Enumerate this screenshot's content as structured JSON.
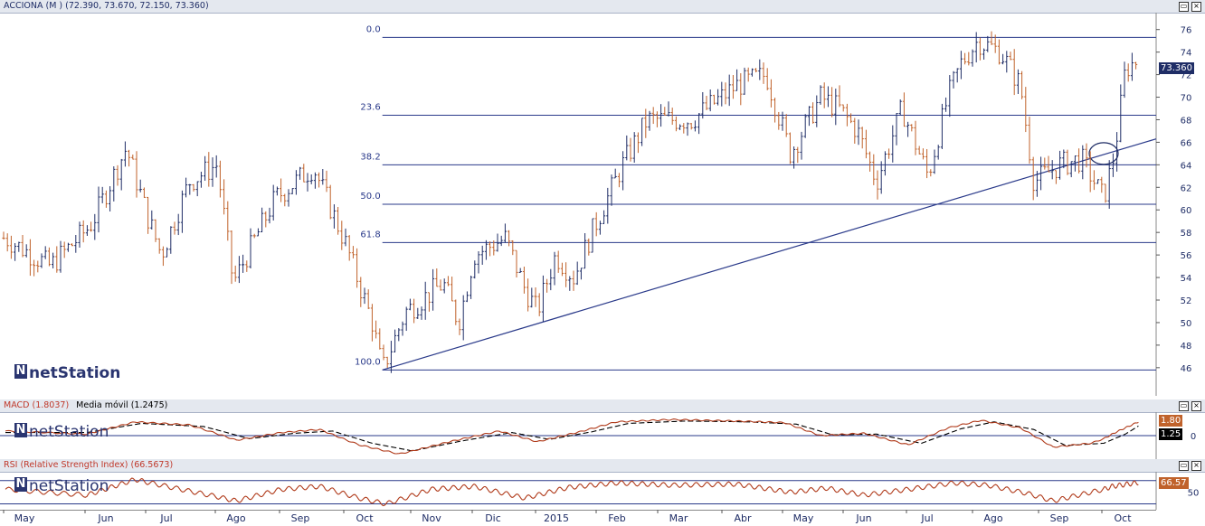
{
  "price_panel": {
    "title": "ACCIONA (M ) (72.390, 73.670, 72.150, 73.360)",
    "last_price": "73.360",
    "watermark": "netStation"
  },
  "macd_panel": {
    "title": "MACD (1.8037)",
    "title_extra": "Media móvil (1.2475)",
    "macd_value": "1.80",
    "signal_value": "1.25",
    "zero_label": "0",
    "watermark": "netStation"
  },
  "rsi_panel": {
    "title": "RSI (Relative Strength Index) (66.5673)",
    "value": "66.57",
    "level_label": "50",
    "watermark": "netStation"
  },
  "window_buttons": {
    "restore": "▭",
    "close": "×"
  },
  "colors": {
    "up": "#1f2d66",
    "down": "#c0622b",
    "accent": "#2a3a8a",
    "macd": "#b03a1a",
    "signal": "#000000",
    "rsi": "#b03a1a",
    "last_price_bg": "#1f2d66",
    "rsi_tag_bg": "#c0622b"
  },
  "chart_data": [
    {
      "type": "ohlc",
      "title": "ACCIONA (M ) (72.390, 73.670, 72.150, 73.360)",
      "x_labels": [
        "May",
        "Jun",
        "Jul",
        "Ago",
        "Sep",
        "Oct",
        "Nov",
        "Dic",
        "2015",
        "Feb",
        "Mar",
        "Abr",
        "May",
        "Jun",
        "Jul",
        "Ago",
        "Sep",
        "Oct"
      ],
      "y_ticks": [
        46,
        48,
        50,
        52,
        54,
        56,
        58,
        60,
        62,
        64,
        66,
        68,
        70,
        72,
        74,
        76
      ],
      "ylim": [
        43.5,
        77.5
      ],
      "grid": false,
      "price_path": [
        [
          0,
          57.5
        ],
        [
          0.55,
          55
        ],
        [
          1.1,
          59
        ],
        [
          1.65,
          65.5
        ],
        [
          2.2,
          56
        ],
        [
          2.6,
          62.5
        ],
        [
          3.0,
          64
        ],
        [
          3.25,
          53.5
        ],
        [
          3.9,
          61
        ],
        [
          4.5,
          63.8
        ],
        [
          5.0,
          57
        ],
        [
          5.4,
          50
        ],
        [
          5.55,
          45.8
        ],
        [
          5.9,
          51
        ],
        [
          6.5,
          53.5
        ],
        [
          6.75,
          50
        ],
        [
          7.0,
          56
        ],
        [
          7.5,
          57.5
        ],
        [
          7.8,
          53
        ],
        [
          8.0,
          51
        ],
        [
          8.3,
          56
        ],
        [
          8.6,
          54
        ],
        [
          8.9,
          58
        ],
        [
          9.4,
          64
        ],
        [
          9.8,
          68
        ],
        [
          10.5,
          68
        ],
        [
          11.2,
          71
        ],
        [
          11.7,
          72
        ],
        [
          12.1,
          65
        ],
        [
          12.6,
          70
        ],
        [
          12.9,
          69
        ],
        [
          13.2,
          67
        ],
        [
          13.5,
          62.5
        ],
        [
          13.9,
          69
        ],
        [
          14.3,
          63
        ],
        [
          14.6,
          70
        ],
        [
          14.8,
          73
        ],
        [
          15.05,
          75
        ],
        [
          15.4,
          74
        ],
        [
          15.7,
          71
        ],
        [
          15.9,
          62.5
        ],
        [
          16.3,
          64
        ],
        [
          16.65,
          64.5
        ],
        [
          17.0,
          61
        ],
        [
          17.25,
          65
        ],
        [
          17.5,
          72.5
        ],
        [
          17.8,
          73.36
        ]
      ],
      "fibonacci": {
        "range": [
          45.8,
          75.3
        ],
        "levels": [
          {
            "label": "0.0",
            "value": 75.3
          },
          {
            "label": "23.6",
            "value": 68.4
          },
          {
            "label": "38.2",
            "value": 64.0
          },
          {
            "label": "50.0",
            "value": 60.5
          },
          {
            "label": "61.8",
            "value": 57.1
          },
          {
            "label": "100.0",
            "value": 45.8
          }
        ]
      },
      "trendline": {
        "from": [
          "Oct",
          45.8
        ],
        "to": [
          "Oct",
          66.3
        ]
      },
      "annotation": "circle near Oct, price ≈ 65"
    },
    {
      "type": "line",
      "title": "MACD (1.8037)",
      "series": [
        {
          "name": "MACD (1.8037)",
          "last": 1.8037
        },
        {
          "name": "Media móvil (1.2475)",
          "last": 1.2475
        }
      ],
      "y_ticks": [
        0
      ],
      "x_labels": [
        "May",
        "Jun",
        "Jul",
        "Ago",
        "Sep",
        "Oct",
        "Nov",
        "Dic",
        "2015",
        "Feb",
        "Mar",
        "Abr",
        "May",
        "Jun",
        "Jul",
        "Ago",
        "Sep",
        "Oct"
      ],
      "macd_path": [
        [
          0,
          0.6
        ],
        [
          1,
          0.2
        ],
        [
          1.8,
          1.8
        ],
        [
          2.6,
          1.4
        ],
        [
          3.3,
          -0.6
        ],
        [
          4.0,
          0.4
        ],
        [
          4.6,
          0.8
        ],
        [
          5.2,
          -1.2
        ],
        [
          5.8,
          -2.4
        ],
        [
          6.6,
          -0.8
        ],
        [
          7.4,
          0.6
        ],
        [
          8.0,
          -0.8
        ],
        [
          8.7,
          0.5
        ],
        [
          9.3,
          1.8
        ],
        [
          10.2,
          2.1
        ],
        [
          11.2,
          1.9
        ],
        [
          12.0,
          1.7
        ],
        [
          12.6,
          0.0
        ],
        [
          13.3,
          0.3
        ],
        [
          14.0,
          -1.2
        ],
        [
          14.6,
          1.0
        ],
        [
          15.1,
          2.0
        ],
        [
          15.7,
          1.0
        ],
        [
          16.2,
          -1.5
        ],
        [
          16.8,
          -1.0
        ],
        [
          17.3,
          0.5
        ],
        [
          17.8,
          1.8
        ]
      ],
      "signal_path": [
        [
          0,
          0.4
        ],
        [
          1,
          0.4
        ],
        [
          1.9,
          1.6
        ],
        [
          2.8,
          1.2
        ],
        [
          3.5,
          -0.4
        ],
        [
          4.2,
          0.3
        ],
        [
          4.8,
          0.6
        ],
        [
          5.4,
          -1.0
        ],
        [
          6.0,
          -2.0
        ],
        [
          6.8,
          -0.7
        ],
        [
          7.6,
          0.4
        ],
        [
          8.2,
          -0.5
        ],
        [
          8.9,
          0.5
        ],
        [
          9.5,
          1.6
        ],
        [
          10.4,
          1.9
        ],
        [
          11.4,
          1.8
        ],
        [
          12.2,
          1.5
        ],
        [
          12.8,
          0.1
        ],
        [
          13.5,
          0.2
        ],
        [
          14.2,
          -1.0
        ],
        [
          14.8,
          0.9
        ],
        [
          15.3,
          1.8
        ],
        [
          15.9,
          0.8
        ],
        [
          16.4,
          -1.3
        ],
        [
          17.0,
          -1.0
        ],
        [
          17.5,
          0.2
        ],
        [
          17.8,
          1.25
        ]
      ]
    },
    {
      "type": "line",
      "title": "RSI (Relative Strength Index) (66.5673)",
      "series": [
        {
          "name": "RSI (Relative Strength Index) (66.5673)",
          "last": 66.5673
        }
      ],
      "y_ticks": [
        50
      ],
      "ylim": [
        20,
        85
      ],
      "x_labels": [
        "May",
        "Jun",
        "Jul",
        "Ago",
        "Sep",
        "Oct",
        "Nov",
        "Dic",
        "2015",
        "Feb",
        "Mar",
        "Abr",
        "May",
        "Jun",
        "Jul",
        "Ago",
        "Sep",
        "Oct"
      ],
      "rsi_path": [
        [
          0,
          55
        ],
        [
          1,
          45
        ],
        [
          1.8,
          72
        ],
        [
          2.6,
          52
        ],
        [
          3.3,
          35
        ],
        [
          4.0,
          55
        ],
        [
          4.6,
          60
        ],
        [
          5.2,
          40
        ],
        [
          5.6,
          30
        ],
        [
          6.3,
          55
        ],
        [
          7.0,
          60
        ],
        [
          7.8,
          40
        ],
        [
          8.5,
          58
        ],
        [
          9.3,
          66
        ],
        [
          10.2,
          62
        ],
        [
          11.2,
          64
        ],
        [
          12.1,
          50
        ],
        [
          12.7,
          57
        ],
        [
          13.3,
          45
        ],
        [
          14.0,
          55
        ],
        [
          14.7,
          66
        ],
        [
          15.2,
          62
        ],
        [
          15.8,
          48
        ],
        [
          16.2,
          35
        ],
        [
          16.8,
          50
        ],
        [
          17.2,
          60
        ],
        [
          17.8,
          66.57
        ]
      ]
    }
  ]
}
